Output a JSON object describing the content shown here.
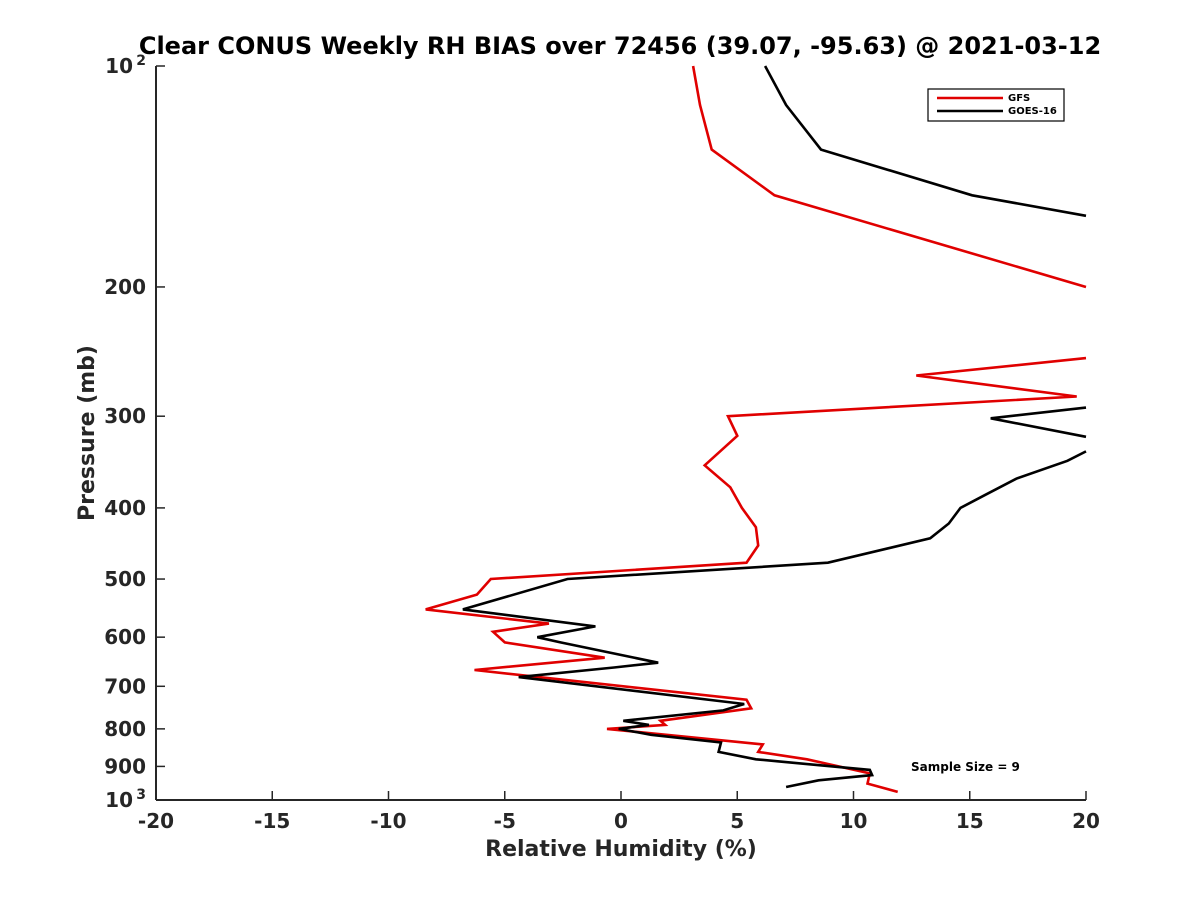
{
  "chart_data": {
    "type": "line",
    "title": "Clear CONUS Weekly RH BIAS over 72456 (39.07, -95.63) @ 2021-03-12",
    "xlabel": "Relative Humidity (%)",
    "ylabel": "Pressure (mb)",
    "xlim": [
      -20,
      20
    ],
    "ylim": [
      100,
      1000
    ],
    "yscale": "log",
    "y_reversed": true,
    "x_ticks": [
      "-20",
      "-15",
      "-10",
      "-5",
      "0",
      "5",
      "10",
      "15",
      "20"
    ],
    "y_ticks": [
      {
        "value": 100,
        "base": "10",
        "exp": "2"
      },
      {
        "value": 200,
        "base": "200",
        "exp": ""
      },
      {
        "value": 300,
        "base": "300",
        "exp": ""
      },
      {
        "value": 400,
        "base": "400",
        "exp": ""
      },
      {
        "value": 500,
        "base": "500",
        "exp": ""
      },
      {
        "value": 600,
        "base": "600",
        "exp": ""
      },
      {
        "value": 700,
        "base": "700",
        "exp": ""
      },
      {
        "value": 800,
        "base": "800",
        "exp": ""
      },
      {
        "value": 900,
        "base": "900",
        "exp": ""
      },
      {
        "value": 1000,
        "base": "10",
        "exp": "3"
      }
    ],
    "legend": {
      "placement": "top-right",
      "entries": [
        "GFS",
        "GOES-16"
      ]
    },
    "annotation": "Sample Size = 9",
    "series": [
      {
        "name": "GFS",
        "color": "#e00000",
        "segments": [
          [
            [
              3.1,
              100
            ],
            [
              3.4,
              113
            ],
            [
              3.9,
              130
            ],
            [
              6.6,
              150
            ],
            [
              20,
              200
            ]
          ],
          [
            [
              20,
              250
            ],
            [
              12.7,
              264
            ],
            [
              19.6,
              282
            ],
            [
              4.6,
              300
            ],
            [
              5.0,
              319
            ],
            [
              3.6,
              350
            ],
            [
              4.7,
              375
            ],
            [
              5.2,
              400
            ],
            [
              5.8,
              425
            ],
            [
              5.9,
              450
            ],
            [
              5.4,
              475
            ],
            [
              -5.6,
              500
            ],
            [
              -6.2,
              525
            ],
            [
              -8.4,
              550
            ],
            [
              -3.1,
              575
            ],
            [
              -5.5,
              590
            ],
            [
              -5.0,
              610
            ],
            [
              -0.7,
              640
            ],
            [
              -6.3,
              665
            ],
            [
              5.4,
              730
            ],
            [
              5.6,
              750
            ],
            [
              1.7,
              780
            ],
            [
              1.9,
              790
            ],
            [
              -0.6,
              800
            ],
            [
              6.1,
              840
            ],
            [
              5.9,
              860
            ],
            [
              8.0,
              880
            ],
            [
              10.7,
              920
            ],
            [
              10.6,
              950
            ],
            [
              11.9,
              975
            ]
          ]
        ]
      },
      {
        "name": "GOES-16",
        "color": "#000000",
        "segments": [
          [
            [
              6.2,
              100
            ],
            [
              7.1,
              113
            ],
            [
              8.6,
              130
            ],
            [
              15.1,
              150
            ],
            [
              20,
              160
            ]
          ],
          [
            [
              20,
              292
            ],
            [
              15.9,
              302
            ],
            [
              20,
              320
            ]
          ],
          [
            [
              20,
              335
            ],
            [
              19.2,
              345
            ],
            [
              17.0,
              365
            ],
            [
              15.6,
              385
            ],
            [
              14.6,
              400
            ],
            [
              14.1,
              420
            ],
            [
              13.3,
              440
            ],
            [
              8.9,
              475
            ],
            [
              -2.3,
              500
            ],
            [
              -6.8,
              550
            ],
            [
              -1.1,
              580
            ],
            [
              -3.6,
              600
            ],
            [
              -2.6,
              610
            ],
            [
              1.6,
              650
            ],
            [
              -0.3,
              660
            ],
            [
              -4.4,
              680
            ],
            [
              5.3,
              740
            ],
            [
              4.4,
              755
            ],
            [
              0.1,
              780
            ],
            [
              1.2,
              790
            ],
            [
              -0.1,
              800
            ],
            [
              1.3,
              815
            ],
            [
              4.3,
              835
            ],
            [
              4.2,
              860
            ],
            [
              5.8,
              880
            ],
            [
              10.7,
              910
            ],
            [
              10.8,
              925
            ],
            [
              8.5,
              940
            ],
            [
              7.1,
              960
            ]
          ]
        ]
      }
    ]
  }
}
